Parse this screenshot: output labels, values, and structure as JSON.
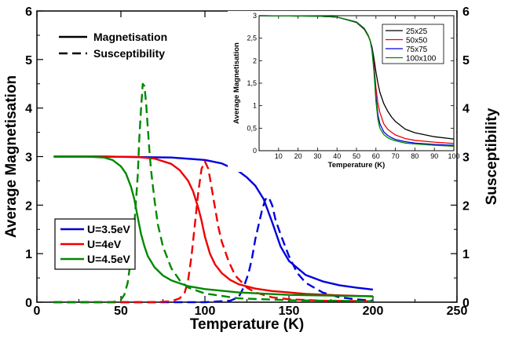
{
  "chart_data": [
    {
      "id": "main",
      "type": "line",
      "xlabel": "Temperature (K)",
      "ylabel": "Average Magnetisation",
      "ylabel_right": "Susceptibility",
      "xlim": [
        0,
        250
      ],
      "ylim": [
        0,
        6
      ],
      "ylim_right": [
        0,
        6
      ],
      "x_ticks": [
        0,
        50,
        100,
        150,
        200,
        250
      ],
      "y_ticks": [
        0,
        1,
        2,
        3,
        4,
        5,
        6
      ],
      "grid": false,
      "style_legend": [
        {
          "label": "Magnetisation",
          "dash": "solid"
        },
        {
          "label": "Susceptibility",
          "dash": "dashed"
        }
      ],
      "legend_position": "lower-left",
      "series": [
        {
          "name": "U=3.5eV",
          "color": "#0000dd",
          "kind": "magnetisation",
          "x": [
            10,
            40,
            80,
            100,
            110,
            120,
            125,
            130,
            135,
            140,
            145,
            150,
            160,
            170,
            180,
            190,
            200
          ],
          "y": [
            3.0,
            3.0,
            2.98,
            2.93,
            2.86,
            2.7,
            2.57,
            2.4,
            2.12,
            1.65,
            1.15,
            0.85,
            0.56,
            0.43,
            0.35,
            0.3,
            0.26
          ]
        },
        {
          "name": "U=3.5eV",
          "color": "#0000dd",
          "kind": "susceptibility",
          "x": [
            10,
            100,
            115,
            120,
            123,
            126,
            128,
            130,
            132,
            134,
            136,
            138,
            140,
            142,
            145,
            150,
            155,
            160,
            170,
            180,
            190,
            200
          ],
          "y": [
            0,
            0,
            0.03,
            0.1,
            0.3,
            0.6,
            0.9,
            1.3,
            1.6,
            1.9,
            2.12,
            2.16,
            2.0,
            1.7,
            1.4,
            0.95,
            0.6,
            0.4,
            0.2,
            0.1,
            0.06,
            0.03
          ]
        },
        {
          "name": "U=4eV",
          "color": "#ee0000",
          "kind": "magnetisation",
          "x": [
            10,
            40,
            60,
            70,
            80,
            85,
            90,
            93,
            96,
            98,
            100,
            103,
            106,
            110,
            115,
            120,
            130,
            140,
            150,
            160,
            180,
            200
          ],
          "y": [
            3.0,
            3.0,
            2.99,
            2.96,
            2.85,
            2.72,
            2.5,
            2.28,
            1.95,
            1.68,
            1.35,
            1.0,
            0.78,
            0.6,
            0.46,
            0.37,
            0.28,
            0.23,
            0.2,
            0.17,
            0.14,
            0.12
          ]
        },
        {
          "name": "U=4eV",
          "color": "#ee0000",
          "kind": "susceptibility",
          "x": [
            10,
            70,
            80,
            85,
            88,
            90,
            92,
            94,
            96,
            98,
            100,
            102,
            104,
            106,
            108,
            110,
            114,
            118,
            125,
            130,
            140,
            150,
            170,
            200
          ],
          "y": [
            0,
            0,
            0.02,
            0.08,
            0.2,
            0.45,
            0.95,
            1.6,
            2.25,
            2.75,
            2.9,
            2.75,
            2.35,
            1.95,
            1.55,
            1.25,
            0.85,
            0.55,
            0.3,
            0.2,
            0.1,
            0.06,
            0.03,
            0.02
          ]
        },
        {
          "name": "U=4.5eV",
          "color": "#008800",
          "kind": "magnetisation",
          "x": [
            10,
            30,
            40,
            45,
            50,
            53,
            56,
            58,
            60,
            62,
            64,
            66,
            70,
            75,
            80,
            90,
            100,
            120,
            150,
            200
          ],
          "y": [
            3.0,
            3.0,
            2.98,
            2.93,
            2.8,
            2.65,
            2.38,
            2.12,
            1.75,
            1.4,
            1.15,
            0.95,
            0.72,
            0.55,
            0.45,
            0.33,
            0.27,
            0.2,
            0.15,
            0.12
          ]
        },
        {
          "name": "U=4.5eV",
          "color": "#008800",
          "kind": "susceptibility",
          "x": [
            10,
            45,
            50,
            52,
            54,
            56,
            58,
            60,
            61,
            62,
            63,
            64,
            65,
            66,
            67,
            68,
            70,
            72,
            75,
            80,
            85,
            90,
            100,
            120,
            150,
            200
          ],
          "y": [
            0,
            0,
            0.05,
            0.15,
            0.4,
            0.9,
            1.6,
            2.6,
            3.4,
            4.0,
            4.5,
            4.45,
            4.1,
            3.6,
            3.1,
            2.7,
            2.1,
            1.6,
            1.15,
            0.7,
            0.45,
            0.3,
            0.18,
            0.08,
            0.04,
            0.02
          ]
        }
      ]
    },
    {
      "id": "inset",
      "type": "line",
      "xlabel": "Temperature (K)",
      "ylabel": "Average Magnetisation",
      "xlim": [
        0,
        100
      ],
      "ylim": [
        0,
        3
      ],
      "x_ticks": [
        10,
        20,
        30,
        40,
        50,
        60,
        70,
        80,
        90,
        100
      ],
      "y_ticks": [
        0,
        0.5,
        1,
        1.5,
        2,
        2.5,
        3
      ],
      "x_tick_labels": [
        "10",
        "20",
        "30",
        "40",
        "50",
        "60",
        "70",
        "80",
        "90",
        "100"
      ],
      "y_tick_labels": [
        "0",
        "0,5",
        "1",
        "1,5",
        "2",
        "2,5",
        "3"
      ],
      "grid": false,
      "legend_position": "top-right",
      "series": [
        {
          "name": "25x25",
          "color": "#000000",
          "x": [
            0,
            30,
            40,
            50,
            54,
            56,
            57,
            58,
            59,
            60,
            61,
            62,
            64,
            66,
            68,
            70,
            75,
            80,
            90,
            100
          ],
          "y": [
            3.0,
            2.99,
            2.97,
            2.85,
            2.7,
            2.55,
            2.45,
            2.3,
            2.05,
            1.75,
            1.5,
            1.3,
            1.05,
            0.88,
            0.75,
            0.65,
            0.48,
            0.4,
            0.31,
            0.26
          ]
        },
        {
          "name": "50x50",
          "color": "#ee0000",
          "x": [
            0,
            30,
            40,
            50,
            54,
            56,
            57,
            58,
            59,
            60,
            61,
            62,
            64,
            66,
            68,
            70,
            75,
            80,
            90,
            100
          ],
          "y": [
            3.0,
            2.99,
            2.97,
            2.86,
            2.72,
            2.56,
            2.44,
            2.25,
            1.9,
            1.4,
            1.05,
            0.85,
            0.6,
            0.48,
            0.41,
            0.35,
            0.27,
            0.23,
            0.19,
            0.16
          ]
        },
        {
          "name": "75x75",
          "color": "#0000dd",
          "x": [
            0,
            30,
            40,
            50,
            54,
            56,
            57,
            58,
            59,
            60,
            61,
            62,
            64,
            66,
            68,
            70,
            75,
            80,
            90,
            100
          ],
          "y": [
            3.0,
            2.99,
            2.97,
            2.86,
            2.72,
            2.57,
            2.45,
            2.24,
            1.8,
            1.2,
            0.8,
            0.6,
            0.42,
            0.34,
            0.29,
            0.25,
            0.2,
            0.17,
            0.14,
            0.12
          ]
        },
        {
          "name": "100x100",
          "color": "#008800",
          "x": [
            0,
            30,
            40,
            50,
            54,
            56,
            57,
            58,
            59,
            60,
            61,
            62,
            64,
            66,
            68,
            70,
            75,
            80,
            90,
            100
          ],
          "y": [
            3.0,
            2.99,
            2.97,
            2.86,
            2.72,
            2.57,
            2.45,
            2.22,
            1.75,
            1.1,
            0.7,
            0.5,
            0.36,
            0.29,
            0.25,
            0.22,
            0.17,
            0.15,
            0.12,
            0.1
          ]
        }
      ]
    }
  ]
}
